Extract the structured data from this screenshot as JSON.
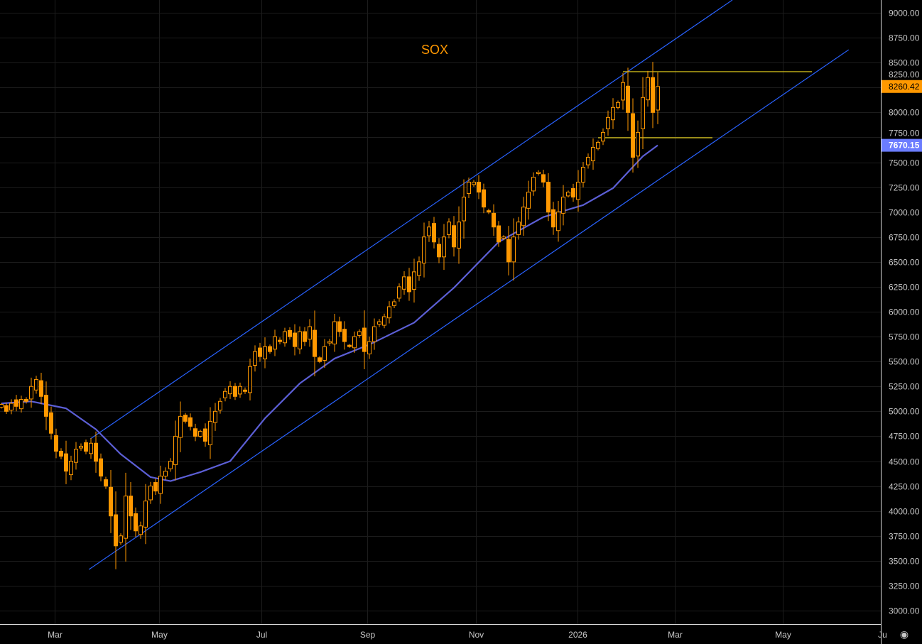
{
  "chart_data": {
    "type": "candlestick",
    "title": "SOX",
    "ylim": [
      3000,
      9000
    ],
    "y_ticks": [
      "9000.00",
      "8750.00",
      "8500.00",
      "8250.00",
      "8000.00",
      "7750.00",
      "7500.00",
      "7250.00",
      "7000.00",
      "6750.00",
      "6500.00",
      "6250.00",
      "6000.00",
      "5750.00",
      "5500.00",
      "5250.00",
      "5000.00",
      "4750.00",
      "4500.00",
      "4250.00",
      "4000.00",
      "3750.00",
      "3500.00",
      "3250.00",
      "3000.00"
    ],
    "x_ticks": [
      {
        "label": "Mar",
        "index": 10.7
      },
      {
        "label": "May",
        "index": 31.7
      },
      {
        "label": "Jul",
        "index": 52.3
      },
      {
        "label": "Sep",
        "index": 73.6
      },
      {
        "label": "Nov",
        "index": 95.4
      },
      {
        "label": "2026",
        "index": 115.9
      },
      {
        "label": "Mar",
        "index": 135.4
      },
      {
        "label": "May",
        "index": 157.1
      },
      {
        "label": "Ju",
        "index": 177.1
      }
    ],
    "closes": [
      5070,
      5000,
      5080,
      5050,
      5120,
      5100,
      5250,
      5320,
      5150,
      4950,
      4780,
      4600,
      4550,
      4400,
      4500,
      4620,
      4650,
      4600,
      4680,
      4500,
      4350,
      4250,
      3950,
      3650,
      3750,
      4150,
      3950,
      3800,
      3850,
      4100,
      4250,
      4200,
      4350,
      4400,
      4500,
      4750,
      4950,
      4900,
      4850,
      4750,
      4800,
      4700,
      4900,
      5000,
      5100,
      5200,
      5250,
      5150,
      5250,
      5200,
      5450,
      5600,
      5550,
      5650,
      5600,
      5750,
      5700,
      5800,
      5750,
      5650,
      5800,
      5700,
      5850,
      5550,
      5500,
      5650,
      5700,
      5900,
      5800,
      5700,
      5650,
      5750,
      5800,
      5600,
      5700,
      5850,
      5900,
      5950,
      6050,
      6100,
      6250,
      6350,
      6200,
      6400,
      6500,
      6750,
      6850,
      6700,
      6550,
      6750,
      6900,
      6650,
      6900,
      7150,
      7300,
      7300,
      7200,
      7050,
      7000,
      6850,
      6700,
      6750,
      6500,
      6750,
      6900,
      7050,
      7200,
      7350,
      7400,
      7300,
      7000,
      6850,
      7000,
      7150,
      7200,
      7150,
      7300,
      7450,
      7550,
      7650,
      7700,
      7800,
      7950,
      8050,
      8100,
      8300,
      8000,
      7550,
      7800,
      8150,
      8350,
      8000,
      8260
    ],
    "moving_average": [
      [
        0,
        5080
      ],
      [
        6,
        5100
      ],
      [
        13,
        5030
      ],
      [
        19,
        4820
      ],
      [
        24,
        4570
      ],
      [
        30,
        4340
      ],
      [
        34,
        4300
      ],
      [
        40,
        4390
      ],
      [
        46,
        4500
      ],
      [
        53,
        4930
      ],
      [
        60,
        5280
      ],
      [
        67,
        5530
      ],
      [
        74,
        5670
      ],
      [
        83,
        5890
      ],
      [
        91,
        6240
      ],
      [
        100,
        6700
      ],
      [
        109,
        6950
      ],
      [
        117,
        7070
      ],
      [
        123,
        7240
      ],
      [
        129,
        7560
      ],
      [
        132,
        7670
      ]
    ],
    "trend_channel": {
      "upper": [
        [
          17.9,
          4724
        ],
        [
          147,
          9128
        ]
      ],
      "lower": [
        [
          17.6,
          3413
        ],
        [
          170.4,
          8629
        ]
      ]
    },
    "horizontal_levels": [
      {
        "price": 8409,
        "from": 125,
        "to": 163
      },
      {
        "price": 7746,
        "from": 120,
        "to": 143
      }
    ],
    "last_price_label": "8260.42",
    "ma_label": "7670.15",
    "colors": {
      "candle": "#ff9800",
      "channel": "#2962ff",
      "ma": "#5c5fd6",
      "level": "#e8d41c",
      "ma_badge": "#6b7cff",
      "grid": "#1c1c1c"
    }
  }
}
